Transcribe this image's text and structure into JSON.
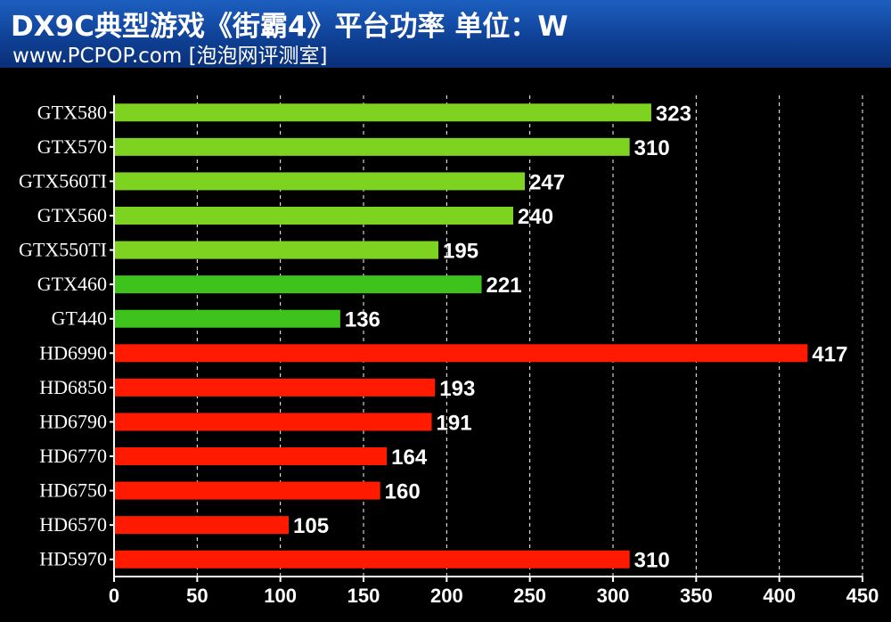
{
  "header": {
    "title": "DX9C典型游戏《街霸4》平台功率  单位：W",
    "subtitle": "www.PCPOP.com [泡泡网评测室]"
  },
  "colors": {
    "header_bg": "#1450ac",
    "nvidia_bar": "#7ed321",
    "nvidia_bar_alt": "#3ec21c",
    "amd_bar": "#ff1a00",
    "background": "#000000",
    "text": "#ffffff"
  },
  "chart_data": {
    "type": "bar",
    "orientation": "horizontal",
    "title": "DX9C典型游戏《街霸4》平台功率  单位：W",
    "xlabel": "",
    "ylabel": "",
    "xlim": [
      0,
      450
    ],
    "xticks": [
      0,
      50,
      100,
      150,
      200,
      250,
      300,
      350,
      400,
      450
    ],
    "grid": true,
    "legend": "none",
    "categories": [
      "GTX580",
      "GTX570",
      "GTX560TI",
      "GTX560",
      "GTX550TI",
      "GTX460",
      "GT440",
      "HD6990",
      "HD6850",
      "HD6790",
      "HD6770",
      "HD6750",
      "HD6570",
      "HD5970"
    ],
    "values": [
      323,
      310,
      247,
      240,
      195,
      221,
      136,
      417,
      193,
      191,
      164,
      160,
      105,
      310
    ],
    "bar_colors": [
      "#7ed321",
      "#7ed321",
      "#7ed321",
      "#7ed321",
      "#7ed321",
      "#3ec21c",
      "#3ec21c",
      "#ff1a00",
      "#ff1a00",
      "#ff1a00",
      "#ff1a00",
      "#ff1a00",
      "#ff1a00",
      "#ff1a00"
    ]
  }
}
